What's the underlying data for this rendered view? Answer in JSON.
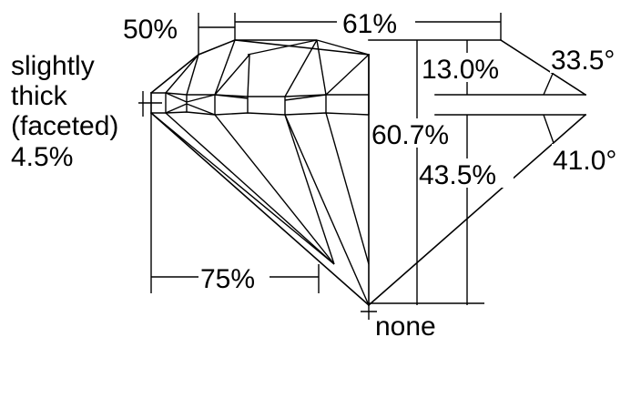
{
  "labels": {
    "table_percent": "50%",
    "total_depth_top_percent": "61%",
    "girdle_line1": "slightly",
    "girdle_line2": "thick",
    "girdle_line3": "(faceted)",
    "girdle_line4": "4.5%",
    "crown_height": "13.0%",
    "crown_angle": "33.5°",
    "total_depth": "60.7%",
    "pavilion_depth": "43.5%",
    "pavilion_angle": "41.0°",
    "lower_half": "75%",
    "culet": "none"
  }
}
